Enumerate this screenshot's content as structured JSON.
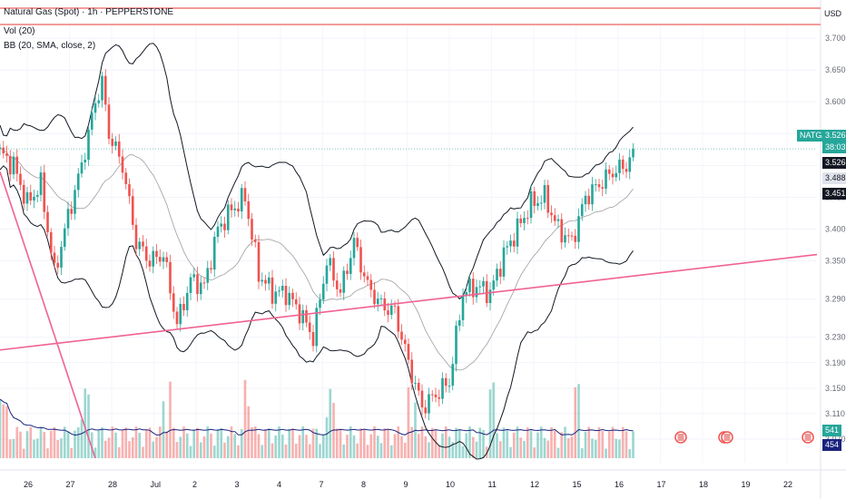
{
  "header": {
    "title": "Natural Gas (Spot) · 1h · PEPPERSTONE",
    "vol_label": "Vol (20)",
    "bb_label": "BB (20, SMA, close, 2)"
  },
  "currency": "USD",
  "price_tags": {
    "symbol": "NATGAS",
    "last": "3.526",
    "countdown": "38:03",
    "tag2": "3.526",
    "tag3": "3.488",
    "tag4": "3.451",
    "vol_a": "541",
    "vol_b": "454"
  },
  "colors": {
    "up": "#26a69a",
    "down": "#ef5350",
    "trendline": "#f06292",
    "band": "#131722",
    "basis": "#9e9e9e",
    "vol_ma": "#1a237e",
    "hline": "#e53935"
  },
  "chart_data": {
    "type": "candlestick",
    "x_ticks": [
      "26",
      "27",
      "28",
      "Jul",
      "2",
      "3",
      "4",
      "7",
      "8",
      "9",
      "10",
      "11",
      "12",
      "15",
      "16",
      "17",
      "18",
      "19",
      "22"
    ],
    "y_ticks": [
      "3.700",
      "3.650",
      "3.600",
      "3.550",
      "3.500",
      "3.450",
      "3.400",
      "3.350",
      "3.290",
      "3.230",
      "3.190",
      "3.150",
      "3.110",
      "3.070"
    ],
    "y_range": [
      3.04,
      3.72
    ],
    "price_series": [
      [
        0,
        3.52
      ],
      [
        4,
        3.5
      ],
      [
        8,
        3.44
      ],
      [
        12,
        3.47
      ],
      [
        16,
        3.33
      ],
      [
        20,
        3.42
      ],
      [
        24,
        3.5
      ],
      [
        28,
        3.6
      ],
      [
        30,
        3.63
      ],
      [
        32,
        3.55
      ],
      [
        36,
        3.5
      ],
      [
        40,
        3.38
      ],
      [
        44,
        3.35
      ],
      [
        48,
        3.36
      ],
      [
        52,
        3.25
      ],
      [
        56,
        3.32
      ],
      [
        60,
        3.31
      ],
      [
        64,
        3.4
      ],
      [
        68,
        3.43
      ],
      [
        72,
        3.45
      ],
      [
        76,
        3.33
      ],
      [
        80,
        3.3
      ],
      [
        84,
        3.3
      ],
      [
        88,
        3.27
      ],
      [
        92,
        3.23
      ],
      [
        96,
        3.35
      ],
      [
        100,
        3.3
      ],
      [
        104,
        3.38
      ],
      [
        108,
        3.31
      ],
      [
        112,
        3.28
      ],
      [
        116,
        3.27
      ],
      [
        120,
        3.19
      ],
      [
        124,
        3.12
      ],
      [
        128,
        3.14
      ],
      [
        132,
        3.16
      ],
      [
        136,
        3.3
      ],
      [
        140,
        3.31
      ],
      [
        144,
        3.3
      ],
      [
        148,
        3.36
      ],
      [
        152,
        3.4
      ],
      [
        156,
        3.44
      ],
      [
        160,
        3.45
      ],
      [
        164,
        3.4
      ],
      [
        168,
        3.38
      ],
      [
        172,
        3.45
      ],
      [
        176,
        3.47
      ],
      [
        180,
        3.49
      ],
      [
        184,
        3.5
      ],
      [
        186,
        3.52
      ]
    ],
    "trendlines": [
      {
        "from": [
          0,
          3.49
        ],
        "to": [
          28,
          3.04
        ]
      },
      {
        "from": [
          0,
          3.21
        ],
        "to": [
          240,
          3.36
        ]
      }
    ],
    "horizontal_levels": [
      3.725,
      3.71
    ],
    "last_price": 3.526
  }
}
